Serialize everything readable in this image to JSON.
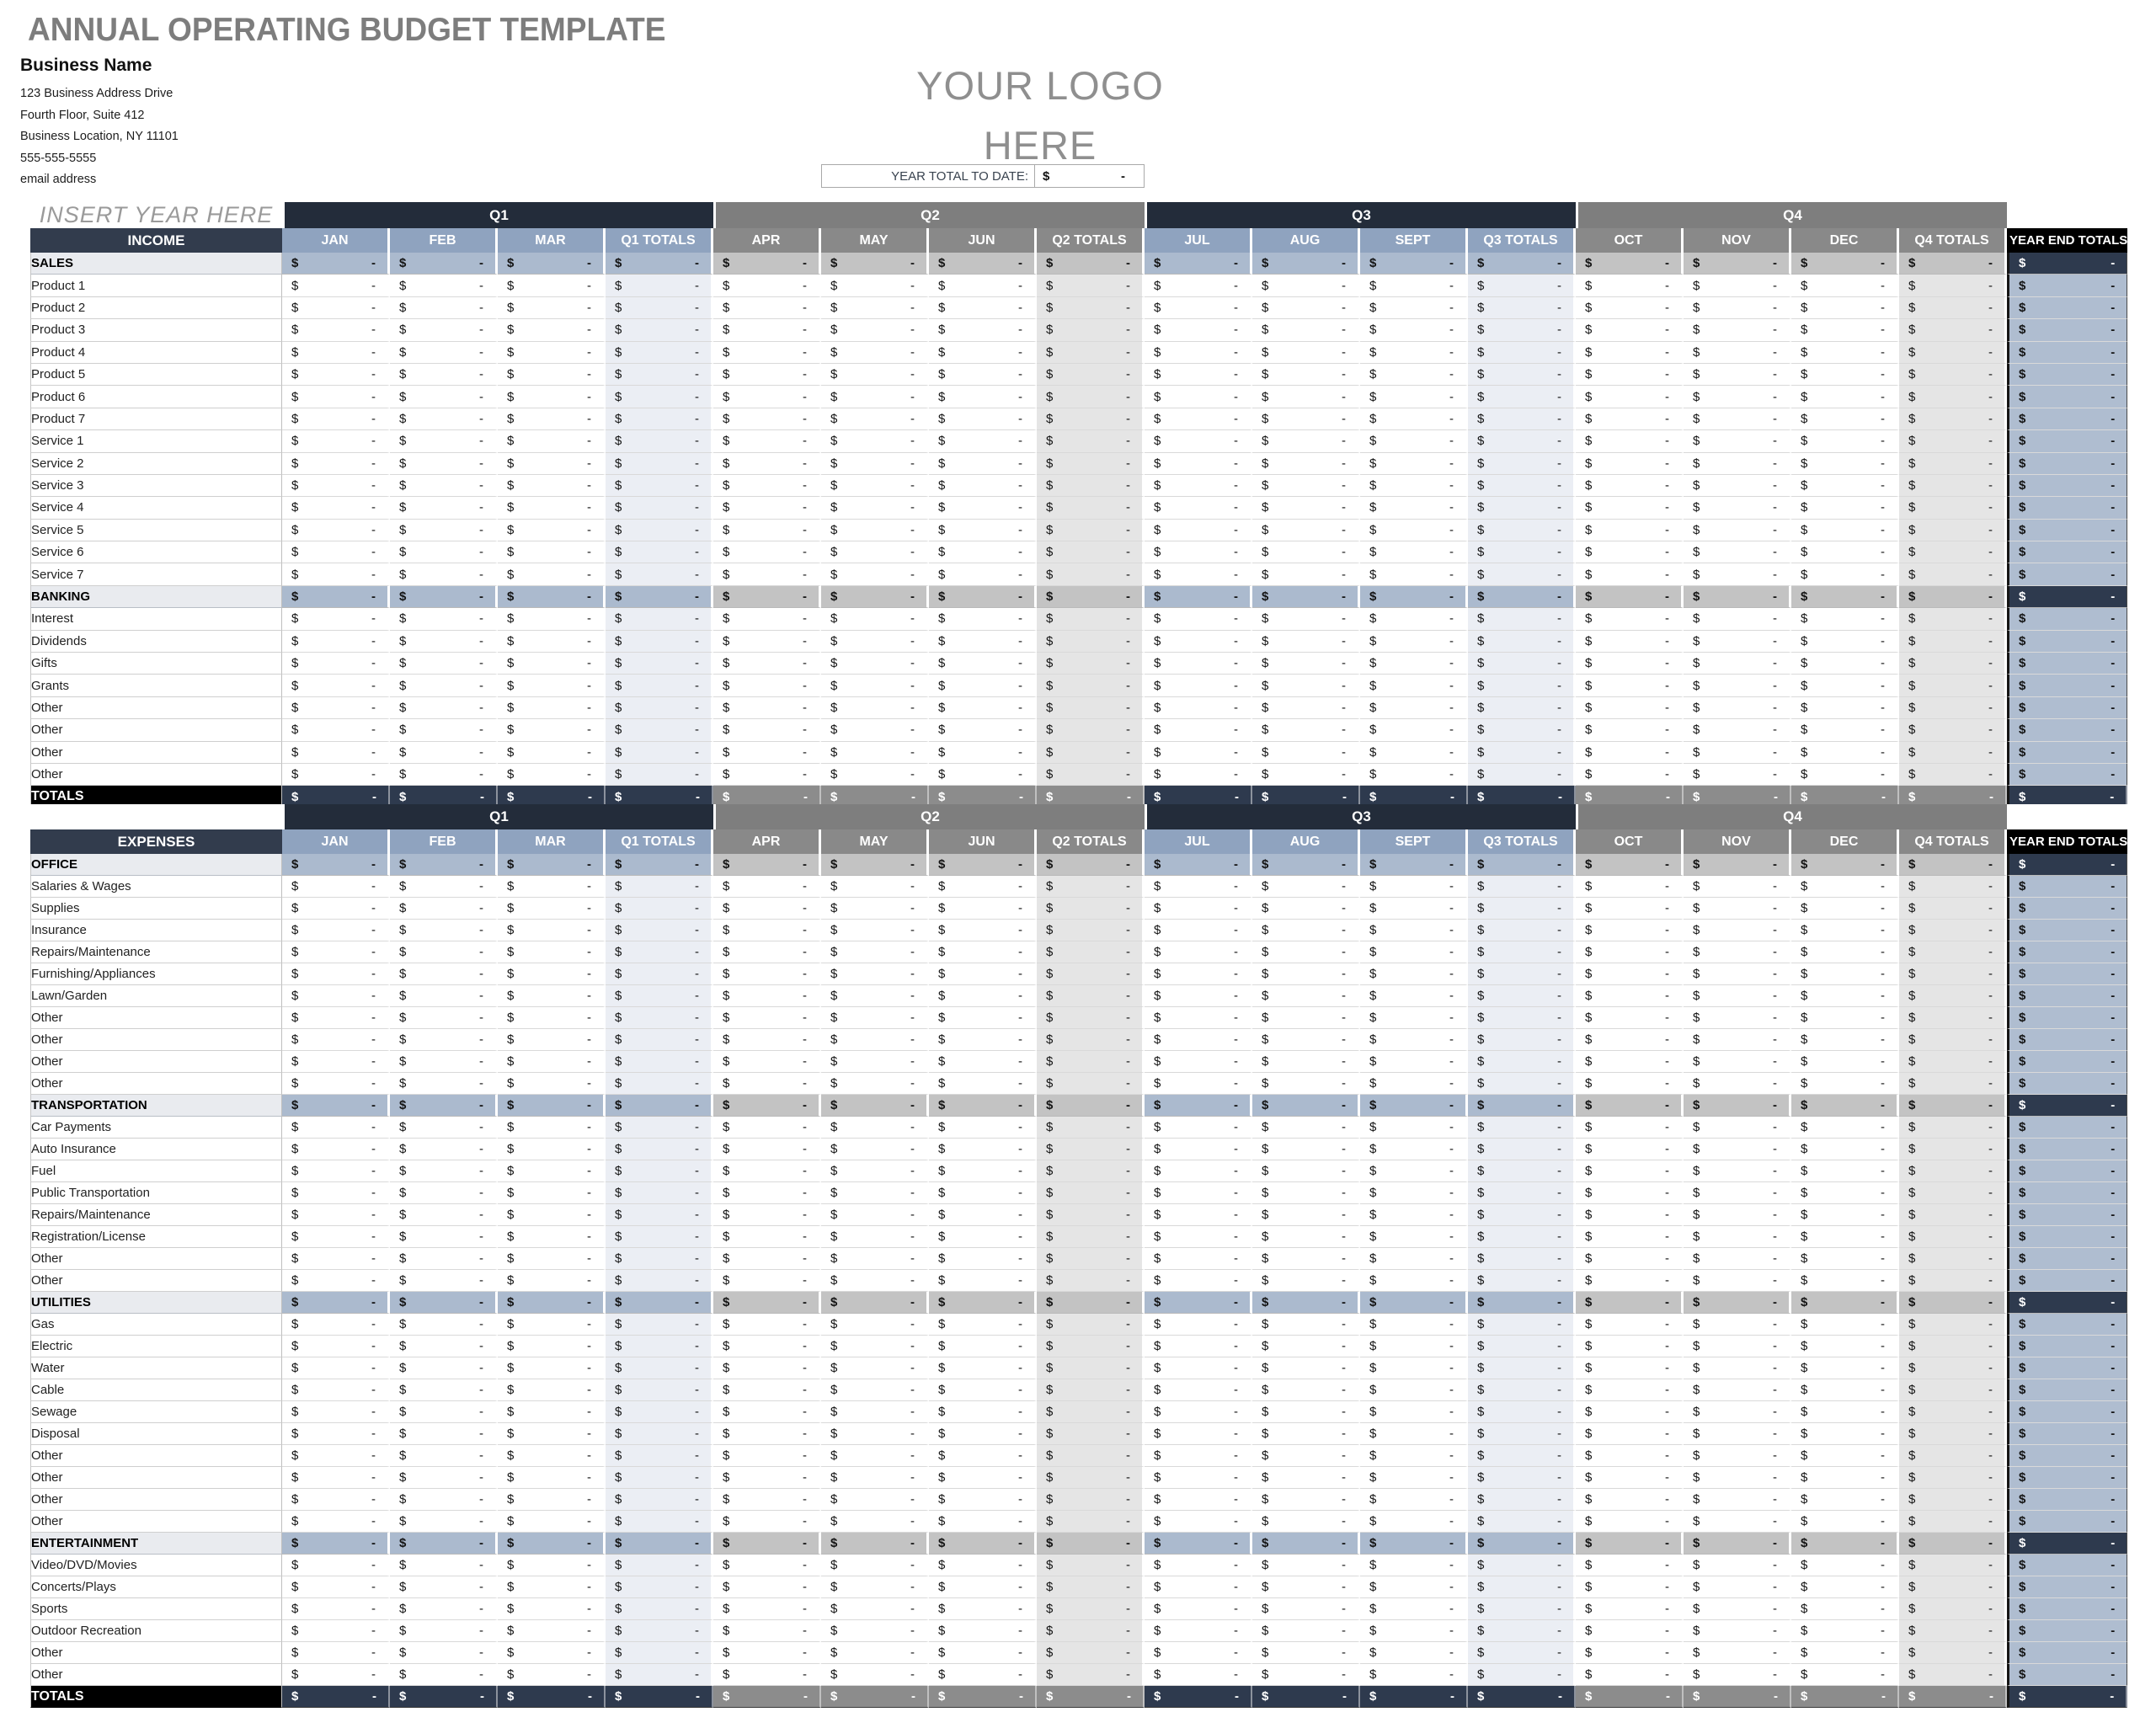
{
  "page": {
    "title": "ANNUAL OPERATING BUDGET TEMPLATE",
    "business": {
      "name": "Business Name",
      "address1": "123 Business Address Drive",
      "address2": "Fourth Floor, Suite 412",
      "address3": "Business Location, NY  11101",
      "phone": "555-555-5555",
      "email": "email address"
    },
    "logo": {
      "line1": "YOUR LOGO",
      "line2": "HERE"
    },
    "year_total": {
      "label": "YEAR TOTAL TO DATE:",
      "currency": "$",
      "value": "-"
    }
  },
  "grid": {
    "quarters": [
      {
        "label": "Q1",
        "theme": "navy",
        "cols": [
          "JAN",
          "FEB",
          "MAR",
          "Q1 TOTALS"
        ]
      },
      {
        "label": "Q2",
        "theme": "gray",
        "cols": [
          "APR",
          "MAY",
          "JUN",
          "Q2 TOTALS"
        ]
      },
      {
        "label": "Q3",
        "theme": "navy",
        "cols": [
          "JUL",
          "AUG",
          "SEPT",
          "Q3 TOTALS"
        ]
      },
      {
        "label": "Q4",
        "theme": "gray",
        "cols": [
          "OCT",
          "NOV",
          "DEC",
          "Q4 TOTALS"
        ]
      }
    ],
    "year_end_label": "YEAR END TOTALS",
    "cell_currency": "$",
    "cell_value": "-"
  },
  "income": {
    "title": "INCOME",
    "corner_note": "INSERT YEAR HERE",
    "totals_label": "TOTALS",
    "rows": [
      {
        "type": "section",
        "label": "SALES"
      },
      {
        "type": "item",
        "label": "Product 1"
      },
      {
        "type": "item",
        "label": "Product 2"
      },
      {
        "type": "item",
        "label": "Product 3"
      },
      {
        "type": "item",
        "label": "Product 4"
      },
      {
        "type": "item",
        "label": "Product 5"
      },
      {
        "type": "item",
        "label": "Product 6"
      },
      {
        "type": "item",
        "label": "Product 7"
      },
      {
        "type": "item",
        "label": "Service 1"
      },
      {
        "type": "item",
        "label": "Service 2"
      },
      {
        "type": "item",
        "label": "Service 3"
      },
      {
        "type": "item",
        "label": "Service 4"
      },
      {
        "type": "item",
        "label": "Service 5"
      },
      {
        "type": "item",
        "label": "Service 6"
      },
      {
        "type": "item",
        "label": "Service 7"
      },
      {
        "type": "section",
        "label": "BANKING"
      },
      {
        "type": "item",
        "label": "Interest"
      },
      {
        "type": "item",
        "label": "Dividends"
      },
      {
        "type": "item",
        "label": "Gifts"
      },
      {
        "type": "item",
        "label": "Grants"
      },
      {
        "type": "item",
        "label": "Other"
      },
      {
        "type": "item",
        "label": "Other"
      },
      {
        "type": "item",
        "label": "Other"
      },
      {
        "type": "item",
        "label": "Other"
      },
      {
        "type": "totals",
        "label": "TOTALS"
      }
    ]
  },
  "expenses": {
    "title": "EXPENSES",
    "corner_note": "",
    "totals_label": "TOTALS",
    "rows": [
      {
        "type": "section",
        "label": "OFFICE"
      },
      {
        "type": "item",
        "label": "Salaries & Wages"
      },
      {
        "type": "item",
        "label": "Supplies"
      },
      {
        "type": "item",
        "label": "Insurance"
      },
      {
        "type": "item",
        "label": "Repairs/Maintenance"
      },
      {
        "type": "item",
        "label": "Furnishing/Appliances"
      },
      {
        "type": "item",
        "label": "Lawn/Garden"
      },
      {
        "type": "item",
        "label": "Other"
      },
      {
        "type": "item",
        "label": "Other"
      },
      {
        "type": "item",
        "label": "Other"
      },
      {
        "type": "item",
        "label": "Other"
      },
      {
        "type": "section",
        "label": "TRANSPORTATION"
      },
      {
        "type": "item",
        "label": "Car Payments"
      },
      {
        "type": "item",
        "label": "Auto Insurance"
      },
      {
        "type": "item",
        "label": "Fuel"
      },
      {
        "type": "item",
        "label": "Public Transportation"
      },
      {
        "type": "item",
        "label": "Repairs/Maintenance"
      },
      {
        "type": "item",
        "label": "Registration/License"
      },
      {
        "type": "item",
        "label": "Other"
      },
      {
        "type": "item",
        "label": "Other"
      },
      {
        "type": "section",
        "label": "UTILITIES"
      },
      {
        "type": "item",
        "label": "Gas"
      },
      {
        "type": "item",
        "label": "Electric"
      },
      {
        "type": "item",
        "label": "Water"
      },
      {
        "type": "item",
        "label": "Cable"
      },
      {
        "type": "item",
        "label": "Sewage"
      },
      {
        "type": "item",
        "label": "Disposal"
      },
      {
        "type": "item",
        "label": "Other"
      },
      {
        "type": "item",
        "label": "Other"
      },
      {
        "type": "item",
        "label": "Other"
      },
      {
        "type": "item",
        "label": "Other"
      },
      {
        "type": "section",
        "label": "ENTERTAINMENT"
      },
      {
        "type": "item",
        "label": "Video/DVD/Movies"
      },
      {
        "type": "item",
        "label": "Concerts/Plays"
      },
      {
        "type": "item",
        "label": "Sports"
      },
      {
        "type": "item",
        "label": "Outdoor Recreation"
      },
      {
        "type": "item",
        "label": "Other"
      },
      {
        "type": "item",
        "label": "Other"
      },
      {
        "type": "totals",
        "label": "TOTALS"
      }
    ]
  },
  "colors": {
    "navy_band": "#232C3A",
    "navy_header": "#323C4D",
    "month_navy": "#8FA3BF",
    "band_gray": "#7E7E7E",
    "month_gray": "#898989",
    "section_navy": "#ABBACE",
    "section_gray": "#C3C3C3",
    "section_label": "#E9EBEF",
    "tint_navy": "#EBEEF4",
    "tint_gray": "#E5E5E5",
    "year_end_body": "#AFBDD0",
    "dark_cell": "#2E3A4E",
    "totals_gray": "#8C8C8C",
    "black": "#000000",
    "title_gray": "#7D7D7D",
    "logo_gray": "#8F8F8F",
    "note_gray": "#9A9A9A"
  }
}
